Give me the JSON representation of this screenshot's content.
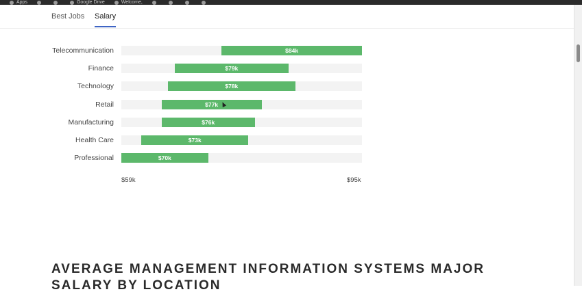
{
  "bookmarks": [
    "Apps",
    "",
    "",
    "Google Drive",
    "Welcome,",
    "",
    "",
    "",
    "",
    ""
  ],
  "tabs": {
    "best_jobs": "Best Jobs",
    "salary": "Salary"
  },
  "chart_data": {
    "type": "bar",
    "orientation": "horizontal",
    "categories": [
      "Telecommunication",
      "Finance",
      "Technology",
      "Retail",
      "Manufacturing",
      "Health Care",
      "Professional"
    ],
    "series": [
      {
        "range_start": [
          74,
          67,
          66,
          65,
          65,
          62,
          59
        ],
        "range_end": [
          95,
          84,
          85,
          80,
          79,
          78,
          72
        ],
        "values": [
          84,
          79,
          78,
          77,
          76,
          73,
          70
        ],
        "labels": [
          "$84k",
          "$79k",
          "$78k",
          "$77k",
          "$76k",
          "$73k",
          "$70k"
        ]
      }
    ],
    "xlim": [
      59,
      95
    ],
    "x_tick_labels": [
      "$59k",
      "$95k"
    ],
    "bar_color": "#5cb86b",
    "track_color": "#f3f3f3"
  },
  "heading": "Average Management Information Systems Major Salary by Location"
}
